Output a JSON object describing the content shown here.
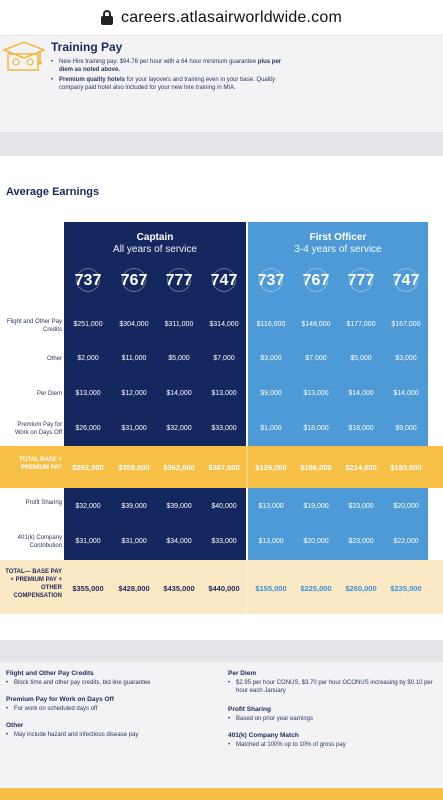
{
  "browser": {
    "url": "careers.atlasairworldwide.com"
  },
  "training": {
    "title": "Training Pay",
    "bullets": [
      {
        "text_a": "New Hire training pay: $94.76 per hour with a 64 hour minimum guarantee ",
        "text_b": "plus per diem as noted above."
      },
      {
        "text_a": "Premium quality hotels",
        "text_b": " for your layovers and training even in your base. Quality company paid hotel also included for your new hire training in MIA."
      }
    ]
  },
  "earnings": {
    "title": "Average Earnings",
    "captain": {
      "title": "Captain",
      "subtitle": "All years of service",
      "models": [
        "737",
        "767",
        "777",
        "747"
      ]
    },
    "first_officer": {
      "title": "First Officer",
      "subtitle": "3-4 years of service",
      "models": [
        "737",
        "767",
        "777",
        "747"
      ]
    },
    "rows": [
      {
        "label": "Flight and Other Pay Credits",
        "captain": [
          "$251,000",
          "$304,000",
          "$311,000",
          "$314,000"
        ],
        "fo": [
          "$116,000",
          "$148,000",
          "$177,000",
          "$167,000"
        ]
      },
      {
        "label": "Other",
        "captain": [
          "$2,000",
          "$11,000",
          "$5,000",
          "$7,000"
        ],
        "fo": [
          "$3,000",
          "$7,000",
          "$5,000",
          "$3,000"
        ]
      },
      {
        "label": "Per Diem",
        "captain": [
          "$13,000",
          "$12,000",
          "$14,000",
          "$13,000"
        ],
        "fo": [
          "$9,000",
          "$13,000",
          "$14,000",
          "$14,000"
        ]
      },
      {
        "label": "Premium Pay for Work on Days Off",
        "captain": [
          "$26,000",
          "$31,000",
          "$32,000",
          "$33,000"
        ],
        "fo": [
          "$1,000",
          "$18,000",
          "$18,000",
          "$9,000"
        ]
      },
      {
        "label": "TOTAL BASE + PREMIUM PAY",
        "captain": [
          "$292,000",
          "$358,000",
          "$362,000",
          "$367,000"
        ],
        "fo": [
          "$129,000",
          "$186,000",
          "$214,000",
          "$193,000"
        ]
      },
      {
        "label": "Profit Sharing",
        "captain": [
          "$32,000",
          "$39,000",
          "$39,000",
          "$40,000"
        ],
        "fo": [
          "$13,000",
          "$19,000",
          "$23,000",
          "$20,000"
        ]
      },
      {
        "label": "401(k) Company Contribution",
        "captain": [
          "$31,000",
          "$31,000",
          "$34,000",
          "$33,000"
        ],
        "fo": [
          "$13,000",
          "$20,000",
          "$23,000",
          "$22,000"
        ]
      },
      {
        "label": "TOTAL— BASE PAY + PREMIUM PAY + OTHER COMPENSATION",
        "captain": [
          "$355,000",
          "$428,000",
          "$435,000",
          "$440,000"
        ],
        "fo": [
          "$155,000",
          "$225,000",
          "$260,000",
          "$235,000"
        ]
      }
    ]
  },
  "notes": {
    "flight_title": "Flight and Other Pay Credits",
    "flight_desc": "Block time and other pay credits, bid line guarantee",
    "premium_title": "Premium Pay for Work on Days Off",
    "premium_desc": "For work on scheduled days off",
    "other_title": "Other",
    "other_desc": "May include hazard and infectious disease pay",
    "perdiem_title": "Per Diem",
    "perdiem_desc": "$2.95 per hour CONUS, $3.70 per hour OCONUS increasing by $0.10 per hour each January",
    "profit_title": "Profit Sharing",
    "profit_desc": "Based on prior year earnings",
    "k401_title": "401(k) Company Match",
    "k401_desc": "Matched at 100% up to 10% of gross pay"
  },
  "colors": {
    "navy": "#14275e",
    "sky": "#4d9ad6",
    "gold": "#f6bf45",
    "cream": "#fbe9c6"
  },
  "icons": {
    "training": "graduation-cap-icon",
    "lock": "lock-icon"
  }
}
